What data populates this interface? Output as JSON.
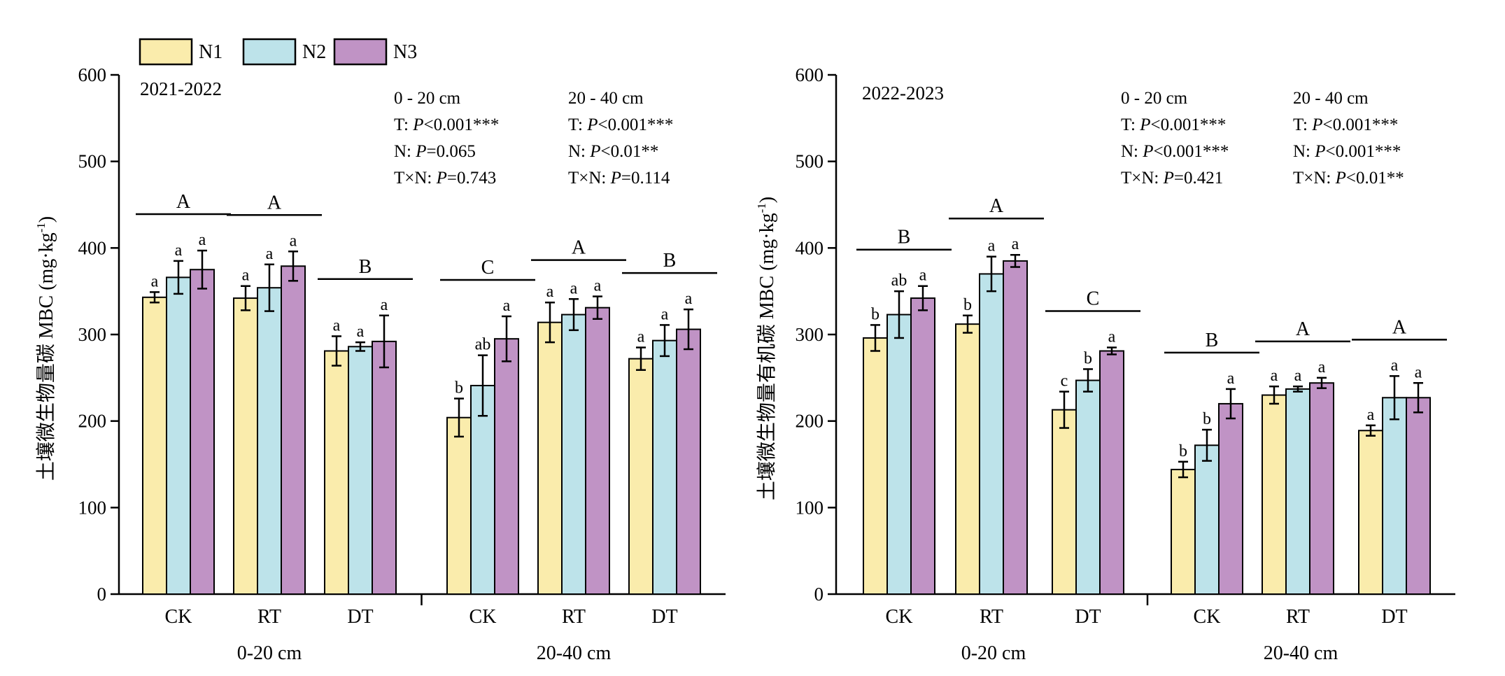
{
  "legend": [
    {
      "name": "N1",
      "color": "#faecac"
    },
    {
      "name": "N2",
      "color": "#bde3ea"
    },
    {
      "name": "N3",
      "color": "#c093c5"
    }
  ],
  "colors": {
    "axis": "#000000",
    "bar_stroke": "#000000"
  },
  "chart_data": [
    {
      "type": "bar",
      "period": "2021-2022",
      "ylabel": "土壤微生物量碳 MBC (mg·kg-1)",
      "ylabel_main": "土壤微生物量碳 MBC (mg·kg",
      "ylabel_sup": "-1",
      "ylabel_close": ")",
      "ylim": [
        0,
        600
      ],
      "yticks": [
        "0",
        "100",
        "200",
        "300",
        "400",
        "500",
        "600"
      ],
      "ytick_values": [
        0,
        100,
        200,
        300,
        400,
        500,
        600
      ],
      "depth_groups": [
        {
          "label": "0-20 cm",
          "categories": [
            {
              "label": "CK",
              "values": [
                343,
                366,
                375
              ],
              "errors": [
                6,
                19,
                22
              ],
              "letters": [
                "a",
                "a",
                "a"
              ],
              "group_letter": "A"
            },
            {
              "label": "RT",
              "values": [
                342,
                354,
                379
              ],
              "errors": [
                14,
                27,
                17
              ],
              "letters": [
                "a",
                "a",
                "a"
              ],
              "group_letter": "A"
            },
            {
              "label": "DT",
              "values": [
                281,
                286,
                292
              ],
              "errors": [
                17,
                5,
                30
              ],
              "letters": [
                "a",
                "a",
                "a"
              ],
              "group_letter": "B"
            }
          ]
        },
        {
          "label": "20-40 cm",
          "categories": [
            {
              "label": "CK",
              "values": [
                204,
                241,
                295
              ],
              "errors": [
                22,
                35,
                26
              ],
              "letters": [
                "b",
                "ab",
                "a"
              ],
              "group_letter": "C"
            },
            {
              "label": "RT",
              "values": [
                314,
                323,
                331
              ],
              "errors": [
                23,
                18,
                13
              ],
              "letters": [
                "a",
                "a",
                "a"
              ],
              "group_letter": "A"
            },
            {
              "label": "DT",
              "values": [
                272,
                293,
                306
              ],
              "errors": [
                13,
                18,
                23
              ],
              "letters": [
                "a",
                "a",
                "a"
              ],
              "group_letter": "B"
            }
          ]
        }
      ],
      "stats": [
        {
          "header": "0 - 20 cm",
          "lines": [
            {
              "pre": "T: ",
              "italic": "P",
              "post": "<0.001***"
            },
            {
              "pre": "N: ",
              "italic": "P",
              "post": "=0.065"
            },
            {
              "pre": "T×N: ",
              "italic": "P",
              "post": "=0.743"
            }
          ]
        },
        {
          "header": "20 - 40 cm",
          "lines": [
            {
              "pre": "T: ",
              "italic": "P",
              "post": "<0.001***"
            },
            {
              "pre": "N: ",
              "italic": "P",
              "post": "<0.01**"
            },
            {
              "pre": "T×N: ",
              "italic": "P",
              "post": "=0.114"
            }
          ]
        }
      ]
    },
    {
      "type": "bar",
      "period": "2022-2023",
      "ylabel": "土壤微生物量有机碳 MBC (mg·kg-1)",
      "ylabel_main": "土壤微生物量有机碳 MBC (mg·kg",
      "ylabel_sup": "-1",
      "ylabel_close": ")",
      "ylim": [
        0,
        600
      ],
      "yticks": [
        "0",
        "100",
        "200",
        "300",
        "400",
        "500",
        "600"
      ],
      "ytick_values": [
        0,
        100,
        200,
        300,
        400,
        500,
        600
      ],
      "depth_groups": [
        {
          "label": "0-20 cm",
          "categories": [
            {
              "label": "CK",
              "values": [
                296,
                323,
                342
              ],
              "errors": [
                15,
                27,
                14
              ],
              "letters": [
                "b",
                "ab",
                "a"
              ],
              "group_letter": "B"
            },
            {
              "label": "RT",
              "values": [
                312,
                370,
                385
              ],
              "errors": [
                10,
                20,
                7
              ],
              "letters": [
                "b",
                "a",
                "a"
              ],
              "group_letter": "A"
            },
            {
              "label": "DT",
              "values": [
                213,
                247,
                281
              ],
              "errors": [
                21,
                13,
                4
              ],
              "letters": [
                "c",
                "b",
                "a"
              ],
              "group_letter": "C"
            }
          ]
        },
        {
          "label": "20-40 cm",
          "categories": [
            {
              "label": "CK",
              "values": [
                144,
                172,
                220
              ],
              "errors": [
                9,
                18,
                17
              ],
              "letters": [
                "b",
                "b",
                "a"
              ],
              "group_letter": "B"
            },
            {
              "label": "RT",
              "values": [
                230,
                237,
                244
              ],
              "errors": [
                10,
                3,
                6
              ],
              "letters": [
                "a",
                "a",
                "a"
              ],
              "group_letter": "A"
            },
            {
              "label": "DT",
              "values": [
                189,
                227,
                227
              ],
              "errors": [
                6,
                25,
                17
              ],
              "letters": [
                "a",
                "a",
                "a"
              ],
              "group_letter": "A"
            }
          ]
        }
      ],
      "stats": [
        {
          "header": "0 - 20 cm",
          "lines": [
            {
              "pre": "T: ",
              "italic": "P",
              "post": "<0.001***"
            },
            {
              "pre": "N: ",
              "italic": "P",
              "post": "<0.001***"
            },
            {
              "pre": "T×N: ",
              "italic": "P",
              "post": "=0.421"
            }
          ]
        },
        {
          "header": "20 - 40 cm",
          "lines": [
            {
              "pre": "T: ",
              "italic": "P",
              "post": "<0.001***"
            },
            {
              "pre": "N: ",
              "italic": "P",
              "post": "<0.001***"
            },
            {
              "pre": "T×N: ",
              "italic": "P",
              "post": "<0.01**"
            }
          ]
        }
      ]
    }
  ]
}
